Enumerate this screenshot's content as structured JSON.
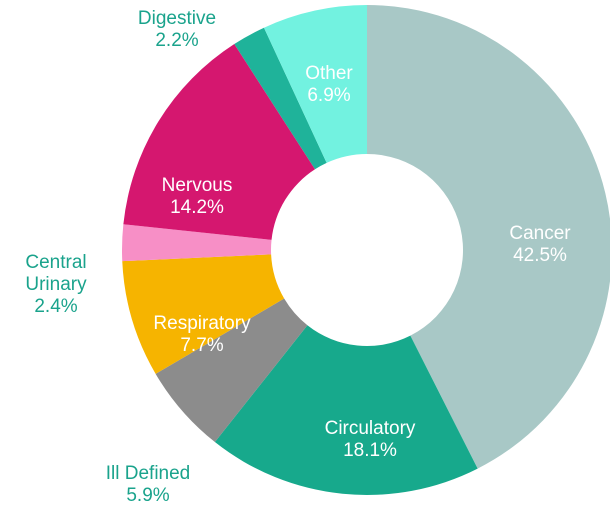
{
  "chart_data": {
    "type": "donut",
    "categories": [
      "Cancer",
      "Circulatory",
      "Ill Defined",
      "Respiratory",
      "Central Urinary",
      "Nervous",
      "Digestive",
      "Other"
    ],
    "values": [
      42.5,
      18.1,
      5.9,
      7.7,
      2.4,
      14.2,
      2.2,
      6.9
    ],
    "value_labels": [
      "42.5%",
      "18.1%",
      "5.9%",
      "7.7%",
      "2.4%",
      "14.2%",
      "2.2%",
      "6.9%"
    ],
    "colors": [
      "#a8c8c6",
      "#17a98c",
      "#8c8c8c",
      "#f6b400",
      "#f78fc6",
      "#d5176f",
      "#1fb39a",
      "#72f2e0"
    ]
  }
}
